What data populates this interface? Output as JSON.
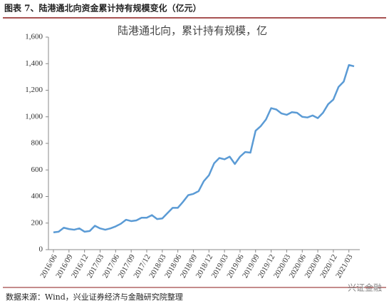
{
  "header": "图表 7、陆港通北向资金累计持有规模变化（亿元）",
  "chart_data": {
    "type": "line",
    "title": "陆港通北向，累计持有规模，亿",
    "categories": [
      "2016/06",
      null,
      null,
      "2016/09",
      null,
      null,
      "2016/12",
      null,
      null,
      "2017/03",
      null,
      null,
      "2017/06",
      null,
      null,
      "2017/09",
      null,
      null,
      "2017/12",
      null,
      null,
      "2018/03",
      null,
      null,
      "2018/06",
      null,
      null,
      "2018/09",
      null,
      null,
      "2018/12",
      null,
      null,
      "2019/03",
      null,
      null,
      "2019/06",
      null,
      null,
      "2019/09",
      null,
      null,
      "2019/12",
      null,
      null,
      "2020/03",
      null,
      null,
      "2020/06",
      null,
      null,
      "2020/09",
      null,
      null,
      "2020/12",
      null,
      null,
      "2021/03",
      null
    ],
    "series": [
      {
        "name": "陆港通北向，累计持有规模，亿",
        "color": "#5b9bd5",
        "values": [
          130,
          135,
          165,
          155,
          150,
          160,
          135,
          140,
          180,
          160,
          150,
          160,
          175,
          195,
          225,
          215,
          220,
          240,
          240,
          260,
          230,
          235,
          275,
          315,
          315,
          360,
          410,
          420,
          440,
          515,
          560,
          650,
          690,
          680,
          700,
          645,
          700,
          735,
          730,
          895,
          930,
          980,
          1065,
          1055,
          1025,
          1015,
          1035,
          1030,
          1000,
          995,
          1010,
          990,
          1030,
          1095,
          1130,
          1225,
          1265,
          1390,
          1380
        ]
      }
    ],
    "ylim": [
      0,
      1600
    ],
    "yticks": [
      0,
      200,
      400,
      600,
      800,
      {
        "value": 1000,
        "label": "1,000"
      },
      {
        "value": 1200,
        "label": "1,200"
      },
      {
        "value": 1400,
        "label": "1,400"
      },
      {
        "value": 1600,
        "label": "1,600"
      }
    ]
  },
  "footer": "数据来源：Wind，兴业证券经济与金融研究院整理",
  "watermark": "兴证金融"
}
